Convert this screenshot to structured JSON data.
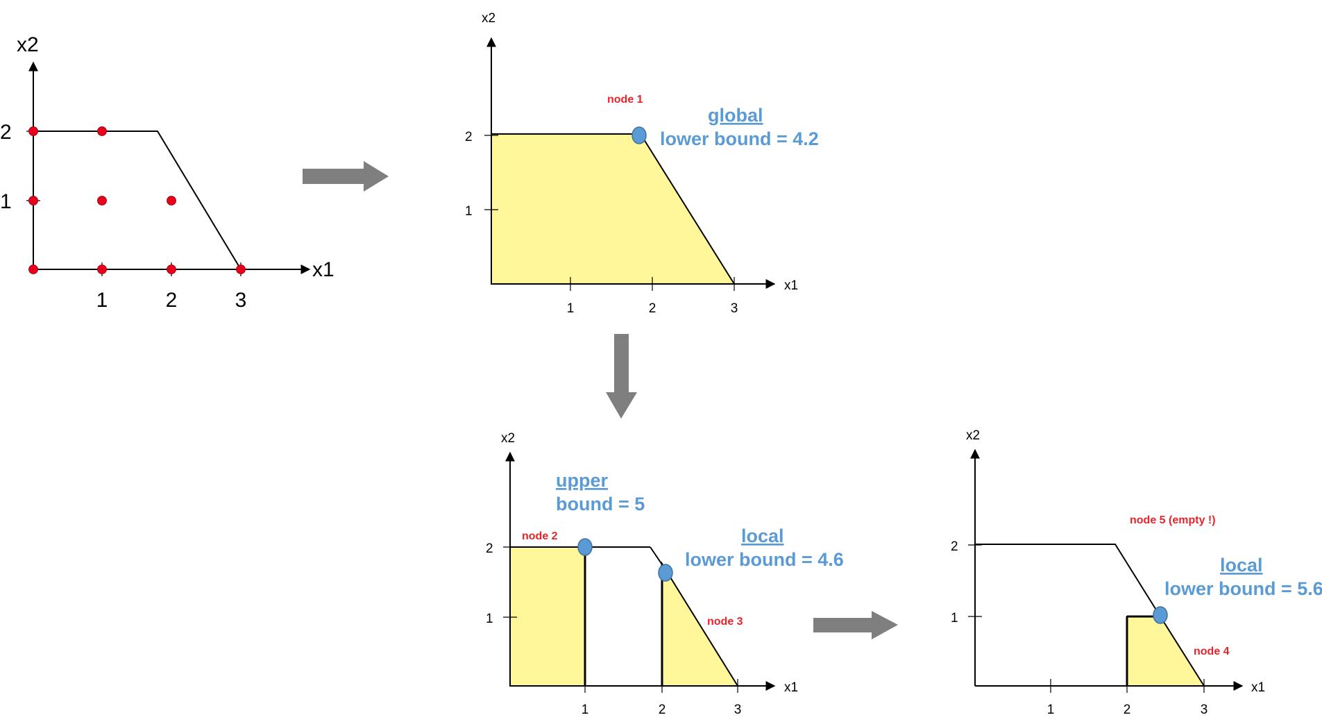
{
  "panel1": {
    "x_label": "x1",
    "y_label": "x2",
    "x_ticks": [
      "1",
      "2",
      "3"
    ],
    "y_ticks": [
      "1",
      "2"
    ]
  },
  "panel2": {
    "x_label": "x1",
    "y_label": "x2",
    "x_ticks": [
      "1",
      "2",
      "3"
    ],
    "y_ticks": [
      "1",
      "2"
    ],
    "node_label": "node 1",
    "bound_title": "global",
    "bound_text": "lower bound = 4.2"
  },
  "panel3": {
    "x_label": "x1",
    "y_label": "x2",
    "x_ticks": [
      "1",
      "2",
      "3"
    ],
    "y_ticks": [
      "1",
      "2"
    ],
    "node_left_label": "node 2",
    "node_right_label": "node 3",
    "upper_title": "upper",
    "upper_text": "bound = 5",
    "local_title": "local",
    "local_text": "lower bound = 4.6"
  },
  "panel4": {
    "x_label": "x1",
    "y_label": "x2",
    "x_ticks": [
      "1",
      "2",
      "3"
    ],
    "y_ticks": [
      "1",
      "2"
    ],
    "node_empty_label": "node 5 (empty !)",
    "node_label": "node 4",
    "local_title": "local",
    "local_text": "lower bound = 5.6"
  },
  "colors": {
    "feasible_fill": "#fff799",
    "point_red": "#e8001c",
    "point_blue": "#5b9bd5",
    "arrow_gray": "#7f7f7f",
    "label_red": "#e8242a",
    "label_blue": "#5b9bd5"
  }
}
